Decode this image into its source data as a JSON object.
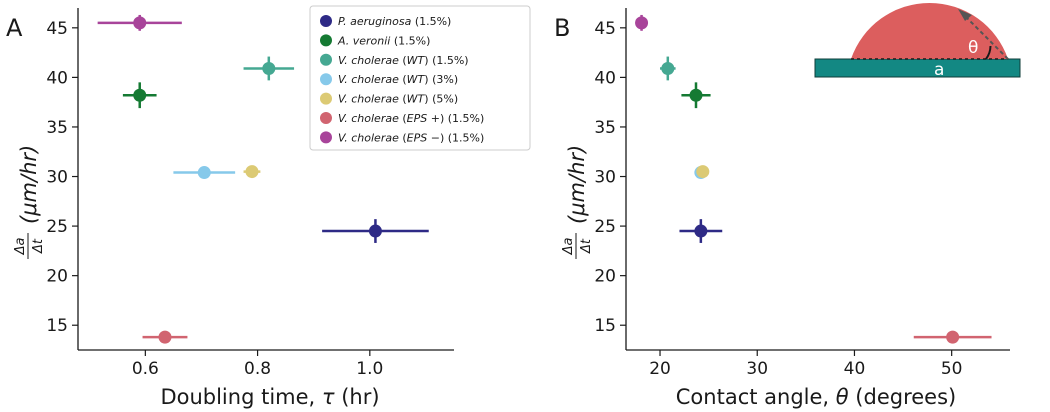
{
  "colors": {
    "p_aeruginosa": "#2e2a86",
    "a_veronii": "#157a33",
    "vc_wt_1_5": "#45a892",
    "vc_wt_3": "#86c9ea",
    "vc_wt_5": "#dcca74",
    "vc_eps_plus": "#d16470",
    "vc_eps_minus": "#a8449a",
    "inset_drop": "#dc5e5e",
    "inset_substrate": "#138883"
  },
  "legend": [
    {
      "key": "p_aeruginosa",
      "species": "P. aeruginosa",
      "strain": "",
      "conc": " (1.5%)"
    },
    {
      "key": "a_veronii",
      "species": "A. veronii",
      "strain": "",
      "conc": " (1.5%)"
    },
    {
      "key": "vc_wt_1_5",
      "species": "V. cholerae",
      "strain": "WT",
      "conc": " (1.5%)"
    },
    {
      "key": "vc_wt_3",
      "species": "V. cholerae",
      "strain": "WT",
      "conc": " (3%)"
    },
    {
      "key": "vc_wt_5",
      "species": "V. cholerae",
      "strain": "WT",
      "conc": " (5%)"
    },
    {
      "key": "vc_eps_plus",
      "species": "V. cholerae",
      "strain": "EPS +",
      "conc": " (1.5%)"
    },
    {
      "key": "vc_eps_minus",
      "species": "V. cholerae",
      "strain": "EPS −",
      "conc": " (1.5%)"
    }
  ],
  "inset": {
    "theta_label": "θ",
    "a_label": "a"
  },
  "chart_data": [
    {
      "type": "scatter",
      "panel": "A",
      "xlabel_text": "Doubling time, ",
      "xlabel_symbol": "τ",
      "xlabel_unit": " (hr)",
      "ylabel_num": "Δa",
      "ylabel_den": "Δt",
      "ylabel_unit": "(μm/hr)",
      "xlim": [
        0.48,
        1.15
      ],
      "ylim": [
        12.5,
        47.0
      ],
      "xticks": [
        0.6,
        0.8,
        1.0
      ],
      "xtick_labels": [
        "0.6",
        "0.8",
        "1.0"
      ],
      "yticks": [
        15,
        20,
        25,
        30,
        35,
        40,
        45
      ],
      "ytick_labels": [
        "15",
        "20",
        "25",
        "30",
        "35",
        "40",
        "45"
      ],
      "points": [
        {
          "key": "p_aeruginosa",
          "x": 1.01,
          "y": 24.5,
          "xerr": 0.095,
          "yerr": 1.2
        },
        {
          "key": "a_veronii",
          "x": 0.59,
          "y": 38.2,
          "xerr": 0.03,
          "yerr": 1.3
        },
        {
          "key": "vc_wt_1_5",
          "x": 0.82,
          "y": 40.9,
          "xerr": 0.045,
          "yerr": 1.2
        },
        {
          "key": "vc_wt_3",
          "x": 0.705,
          "y": 30.4,
          "xerr": 0.055,
          "yerr": 0.3
        },
        {
          "key": "vc_wt_5",
          "x": 0.79,
          "y": 30.5,
          "xerr": 0.015,
          "yerr": 0.3
        },
        {
          "key": "vc_eps_plus",
          "x": 0.635,
          "y": 13.8,
          "xerr": 0.04,
          "yerr": 0.2
        },
        {
          "key": "vc_eps_minus",
          "x": 0.59,
          "y": 45.5,
          "xerr": 0.075,
          "yerr": 0.8
        }
      ]
    },
    {
      "type": "scatter",
      "panel": "B",
      "xlabel_text": "Contact angle, ",
      "xlabel_symbol": "θ",
      "xlabel_unit": "  (degrees)",
      "ylabel_num": "Δa",
      "ylabel_den": "Δt",
      "ylabel_unit": "(μm/hr)",
      "xlim": [
        16.5,
        56.0
      ],
      "ylim": [
        12.5,
        47.0
      ],
      "xticks": [
        20,
        30,
        40,
        50
      ],
      "xtick_labels": [
        "20",
        "30",
        "40",
        "50"
      ],
      "yticks": [
        15,
        20,
        25,
        30,
        35,
        40,
        45
      ],
      "ytick_labels": [
        "15",
        "20",
        "25",
        "30",
        "35",
        "40",
        "45"
      ],
      "points": [
        {
          "key": "p_aeruginosa",
          "x": 24.2,
          "y": 24.5,
          "xerr": 2.2,
          "yerr": 1.2
        },
        {
          "key": "a_veronii",
          "x": 23.7,
          "y": 38.2,
          "xerr": 1.5,
          "yerr": 1.3
        },
        {
          "key": "vc_wt_1_5",
          "x": 20.8,
          "y": 40.9,
          "xerr": 0.8,
          "yerr": 1.2
        },
        {
          "key": "vc_wt_3",
          "x": 24.2,
          "y": 30.4,
          "xerr": 0.3,
          "yerr": 0.3
        },
        {
          "key": "vc_wt_5",
          "x": 24.4,
          "y": 30.5,
          "xerr": 0.5,
          "yerr": 0.3
        },
        {
          "key": "vc_eps_plus",
          "x": 50.1,
          "y": 13.8,
          "xerr": 4.0,
          "yerr": 0.2
        },
        {
          "key": "vc_eps_minus",
          "x": 18.1,
          "y": 45.5,
          "xerr": 0.3,
          "yerr": 0.8
        }
      ]
    }
  ]
}
